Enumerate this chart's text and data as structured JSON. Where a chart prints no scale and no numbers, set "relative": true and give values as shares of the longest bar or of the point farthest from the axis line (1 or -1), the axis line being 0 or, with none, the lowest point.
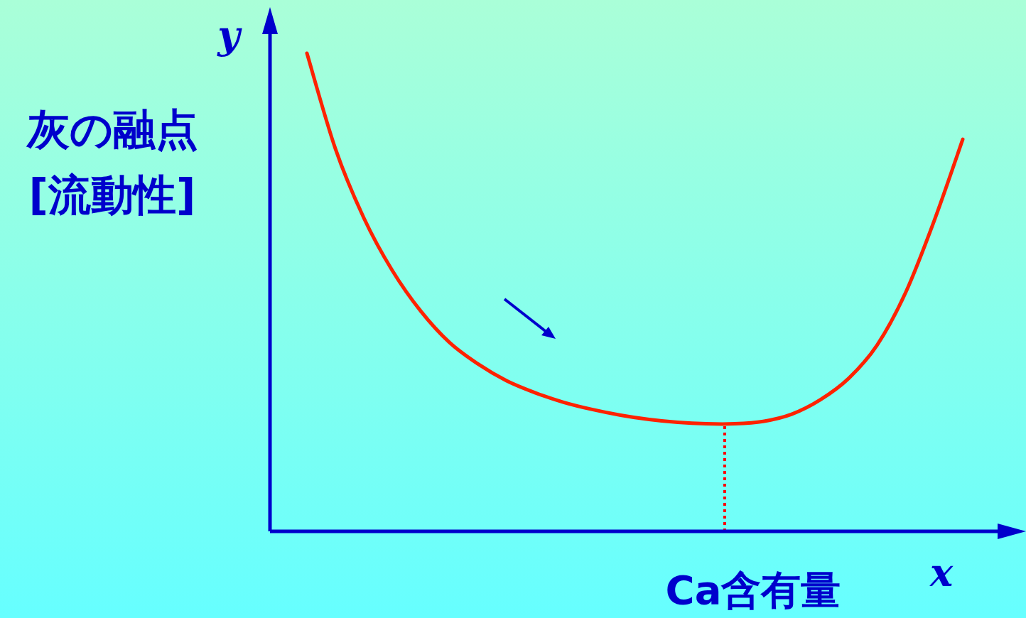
{
  "chart_data": {
    "type": "line",
    "relative": true,
    "xlabel": "Ca含有量",
    "ylabel": "灰の融点\n[流動性]",
    "annotations": [
      "y",
      "x"
    ],
    "categories": [
      null,
      null,
      null,
      null,
      null,
      null,
      null,
      null,
      null,
      null,
      null,
      null,
      null,
      null,
      null,
      null,
      null,
      null,
      null,
      null,
      null,
      null,
      null,
      null
    ],
    "series": [
      {
        "color": "#ff2200",
        "values": [
          1,
          0.8,
          0.655,
          0.545,
          0.46,
          0.395,
          0.35,
          0.315,
          0.29,
          0.27,
          0.255,
          0.243,
          0.234,
          0.228,
          0.225,
          0.225,
          0.23,
          0.245,
          0.275,
          0.32,
          0.39,
          0.5,
          0.65,
          0.82
        ]
      }
    ],
    "marker": "none",
    "line_style": "solid"
  }
}
